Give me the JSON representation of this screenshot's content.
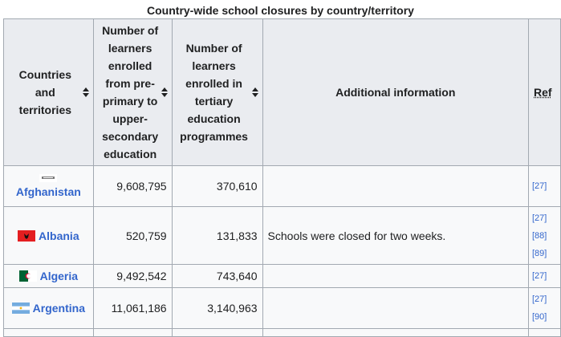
{
  "caption": "Country-wide school closures by country/territory",
  "headers": {
    "country": "Countries and territories",
    "learners": "Number of learners enrolled from pre-primary to upper-secondary education",
    "tertiary": "Number of learners enrolled in tertiary education programmes",
    "info": "Additional information",
    "ref": "Ref"
  },
  "rows": [
    {
      "country": "Afghanistan",
      "learners": "9,608,795",
      "tertiary": "370,610",
      "info": "",
      "refs": [
        "[27]"
      ]
    },
    {
      "country": "Albania",
      "learners": "520,759",
      "tertiary": "131,833",
      "info": "Schools were closed for two weeks.",
      "refs": [
        "[27]",
        "[88]",
        "[89]"
      ]
    },
    {
      "country": "Algeria",
      "learners": "9,492,542",
      "tertiary": "743,640",
      "info": "",
      "refs": [
        "[27]"
      ]
    },
    {
      "country": "Argentina",
      "learners": "11,061,186",
      "tertiary": "3,140,963",
      "info": "",
      "refs": [
        "[27]",
        "[90]"
      ]
    }
  ],
  "flags": [
    "afghanistan-flag-icon",
    "albania-flag-icon",
    "algeria-flag-icon",
    "argentina-flag-icon"
  ]
}
